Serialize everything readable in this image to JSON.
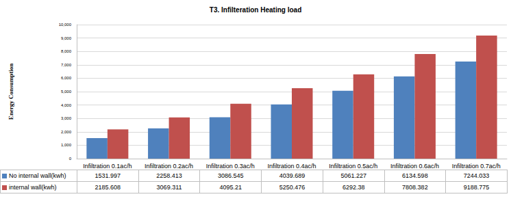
{
  "chart_data": {
    "type": "bar",
    "title": "T3. Infilteration Heating load",
    "y_label": "Energy Consumption",
    "categories": [
      "Infiltration 0.1ac/h",
      "Infiltration 0.2ac/h",
      "Infiltration 0.3ac/h",
      "Infiltration 0.4ac/h",
      "Infiltration 0.5ac/h",
      "Infiltration 0.6ac/h",
      "Infiltration 0.7ac/h"
    ],
    "series": [
      {
        "name": "No internal wall(kwh)",
        "color": "#4f81bd",
        "values": [
          1531.997,
          2258.413,
          3086.545,
          4039.689,
          5061.227,
          6134.598,
          7244.033
        ]
      },
      {
        "name": "internal wall(kwh)",
        "color": "#c0504d",
        "values": [
          2185.608,
          3069.311,
          4095.21,
          5250.476,
          6292.38,
          7808.382,
          9188.775
        ]
      }
    ],
    "ylim": [
      0,
      10000
    ],
    "yticks": [
      0,
      1000,
      2000,
      3000,
      4000,
      5000,
      6000,
      7000,
      8000,
      9000,
      10000
    ],
    "grid": true
  }
}
